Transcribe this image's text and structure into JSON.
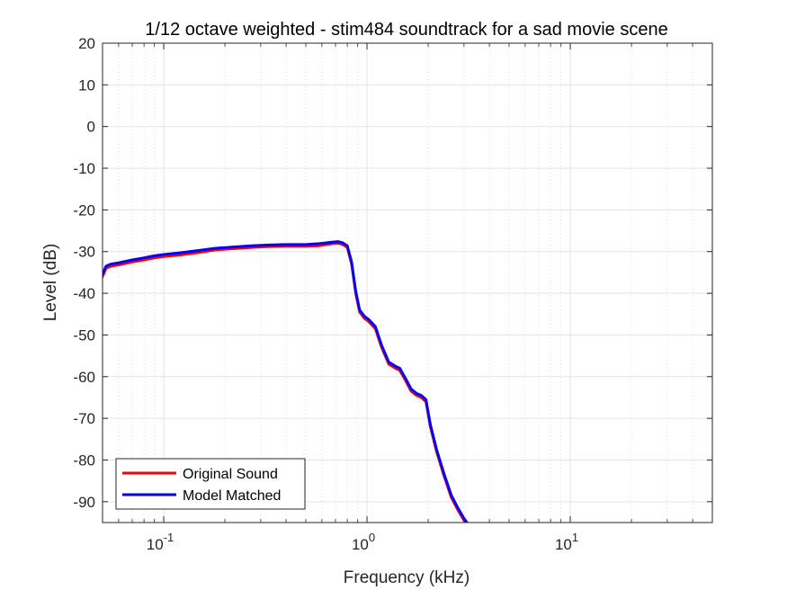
{
  "chart_data": {
    "type": "line",
    "title": "1/12 octave weighted - stim484 soundtrack for a sad movie scene",
    "xlabel": "Frequency (kHz)",
    "ylabel": "Level (dB)",
    "xscale": "log",
    "xlim": [
      0.05,
      50
    ],
    "ylim": [
      -95,
      20
    ],
    "grid": true,
    "minor_grid": true,
    "legend_location": "bottom-left",
    "x_ticks": [
      {
        "value": 0.1,
        "base": "10",
        "exp": "-1"
      },
      {
        "value": 1,
        "base": "10",
        "exp": "0"
      },
      {
        "value": 10,
        "base": "10",
        "exp": "1"
      }
    ],
    "y_ticks": [
      20,
      10,
      0,
      -10,
      -20,
      -30,
      -40,
      -50,
      -60,
      -70,
      -80,
      -90
    ],
    "series": [
      {
        "name": "Original Sound",
        "color": "#ff0000",
        "x": [
          0.05,
          0.052,
          0.055,
          0.06,
          0.07,
          0.08,
          0.09,
          0.1,
          0.12,
          0.15,
          0.18,
          0.22,
          0.27,
          0.33,
          0.4,
          0.5,
          0.58,
          0.63,
          0.68,
          0.72,
          0.76,
          0.8,
          0.84,
          0.88,
          0.92,
          0.97,
          1.02,
          1.1,
          1.18,
          1.28,
          1.38,
          1.45,
          1.55,
          1.65,
          1.75,
          1.85,
          1.95,
          2.05,
          2.2,
          2.4,
          2.6,
          2.8,
          3.0,
          3.1
        ],
        "y": [
          -36,
          -34,
          -33.5,
          -33.2,
          -32.5,
          -32,
          -31.5,
          -31.2,
          -30.8,
          -30.2,
          -29.6,
          -29.3,
          -29,
          -28.8,
          -28.7,
          -28.7,
          -28.6,
          -28.3,
          -28.1,
          -28,
          -28.3,
          -29,
          -33,
          -40,
          -44.5,
          -46,
          -46.8,
          -48.5,
          -53,
          -57,
          -58,
          -58.5,
          -61,
          -63.5,
          -64.5,
          -65,
          -66,
          -72,
          -78,
          -84,
          -89,
          -92,
          -94.5,
          -95
        ],
        "line_width": 3
      },
      {
        "name": "Model Matched",
        "color": "#0000ff",
        "x": [
          0.05,
          0.052,
          0.055,
          0.06,
          0.07,
          0.08,
          0.09,
          0.1,
          0.12,
          0.15,
          0.18,
          0.22,
          0.27,
          0.33,
          0.4,
          0.5,
          0.58,
          0.63,
          0.68,
          0.72,
          0.76,
          0.8,
          0.84,
          0.88,
          0.92,
          0.97,
          1.02,
          1.1,
          1.18,
          1.28,
          1.38,
          1.45,
          1.55,
          1.65,
          1.75,
          1.85,
          1.95,
          2.05,
          2.2,
          2.4,
          2.6,
          2.8,
          3.0,
          3.1
        ],
        "y": [
          -35.5,
          -33.5,
          -33,
          -32.7,
          -32,
          -31.5,
          -31,
          -30.7,
          -30.3,
          -29.7,
          -29.2,
          -28.9,
          -28.6,
          -28.4,
          -28.3,
          -28.3,
          -28.1,
          -27.9,
          -27.7,
          -27.6,
          -27.9,
          -28.6,
          -32.5,
          -39.5,
          -44,
          -45.5,
          -46.3,
          -48,
          -52.5,
          -56.5,
          -57.5,
          -58,
          -60.5,
          -63,
          -64,
          -64.5,
          -65.5,
          -71.5,
          -77.5,
          -83.5,
          -88.5,
          -91.5,
          -94,
          -95
        ],
        "line_width": 3
      }
    ]
  }
}
